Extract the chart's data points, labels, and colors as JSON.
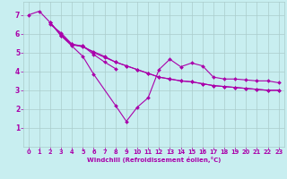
{
  "title": "",
  "xlabel": "Windchill (Refroidissement éolien,°C)",
  "ylabel": "",
  "bg_color": "#c8eef0",
  "line_color": "#aa00aa",
  "grid_color": "#aacccc",
  "xlim": [
    -0.5,
    23.5
  ],
  "ylim": [
    0,
    7.7
  ],
  "xticks": [
    0,
    1,
    2,
    3,
    4,
    5,
    6,
    7,
    8,
    9,
    10,
    11,
    12,
    13,
    14,
    15,
    16,
    17,
    18,
    19,
    20,
    21,
    22,
    23
  ],
  "yticks": [
    1,
    2,
    3,
    4,
    5,
    6,
    7
  ],
  "series": [
    [
      7.0,
      7.2,
      6.6,
      5.9,
      5.35,
      4.8,
      3.85,
      null,
      2.2,
      1.35,
      2.1,
      2.6,
      4.1,
      4.65,
      4.25,
      4.45,
      4.3,
      3.7,
      3.6,
      3.6,
      3.55,
      3.5,
      3.5,
      3.4
    ],
    [
      null,
      null,
      6.6,
      5.9,
      5.4,
      5.35,
      4.9,
      4.5,
      4.15,
      null,
      null,
      null,
      null,
      null,
      null,
      null,
      null,
      null,
      null,
      null,
      null,
      null,
      null,
      null
    ],
    [
      null,
      null,
      6.5,
      6.05,
      5.45,
      5.3,
      5.05,
      4.8,
      4.5,
      4.3,
      4.1,
      3.9,
      3.7,
      3.6,
      3.5,
      3.45,
      3.35,
      3.25,
      3.2,
      3.15,
      3.1,
      3.05,
      3.0,
      3.0
    ],
    [
      null,
      null,
      6.6,
      5.95,
      5.45,
      5.35,
      5.0,
      4.75,
      4.5,
      4.3,
      4.1,
      3.9,
      3.7,
      3.6,
      3.5,
      3.45,
      3.35,
      3.25,
      3.2,
      3.15,
      3.1,
      3.05,
      3.0,
      3.0
    ]
  ]
}
